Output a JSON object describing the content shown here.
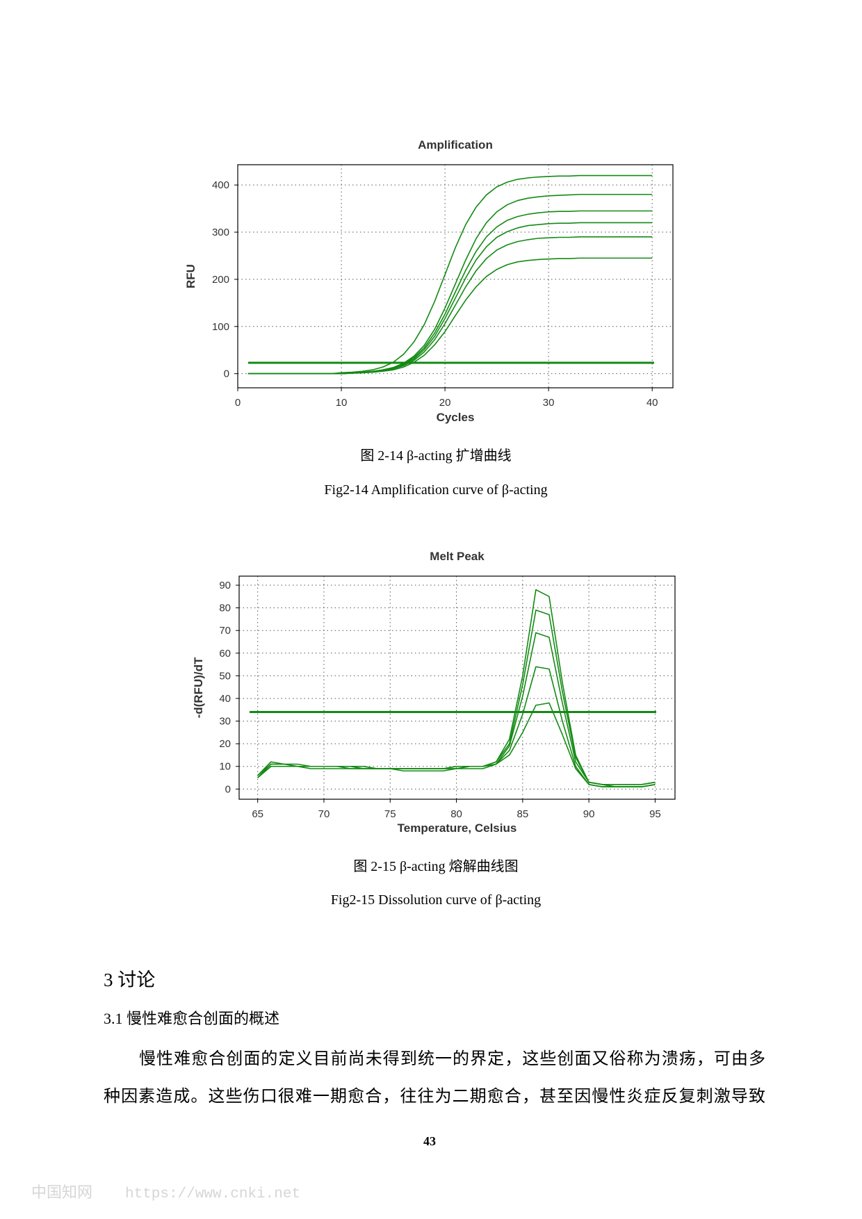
{
  "chart_data": [
    {
      "type": "line",
      "title": "Amplification",
      "x_label": "Cycles",
      "y_label": "RFU",
      "xlim": [
        0,
        42
      ],
      "ylim": [
        -30,
        443
      ],
      "xticks": [
        0,
        10,
        20,
        30,
        40
      ],
      "yticks": [
        0,
        100,
        200,
        300,
        400
      ],
      "grid": true,
      "threshold": 23,
      "threshold_color": "#138a13",
      "x": [
        1,
        2,
        3,
        4,
        5,
        6,
        7,
        8,
        9,
        10,
        11,
        12,
        13,
        14,
        15,
        16,
        17,
        18,
        19,
        20,
        21,
        22,
        23,
        24,
        25,
        26,
        27,
        28,
        29,
        30,
        31,
        32,
        33,
        34,
        35,
        36,
        37,
        38,
        39,
        40
      ],
      "series": [
        {
          "color": "#138a13",
          "values": [
            0,
            0,
            0,
            0,
            0,
            0,
            0,
            0,
            0,
            2,
            3,
            5,
            8,
            14,
            24,
            41,
            67,
            104,
            153,
            210,
            267,
            316,
            353,
            379,
            396,
            406,
            412,
            415,
            417,
            418,
            419,
            419,
            420,
            420,
            420,
            420,
            420,
            420,
            420,
            420
          ]
        },
        {
          "color": "#138a13",
          "values": [
            0,
            0,
            0,
            0,
            0,
            0,
            0,
            0,
            0,
            0,
            2,
            3,
            5,
            8,
            13,
            22,
            37,
            60,
            94,
            139,
            190,
            241,
            286,
            320,
            343,
            358,
            367,
            372,
            375,
            377,
            378,
            379,
            380,
            380,
            380,
            380,
            380,
            380,
            380,
            380
          ]
        },
        {
          "color": "#138a13",
          "values": [
            0,
            0,
            0,
            0,
            0,
            0,
            0,
            0,
            0,
            0,
            1,
            2,
            4,
            7,
            12,
            20,
            34,
            55,
            86,
            126,
            173,
            219,
            259,
            290,
            311,
            325,
            333,
            338,
            341,
            343,
            344,
            344,
            345,
            345,
            345,
            345,
            345,
            345,
            345,
            345
          ]
        },
        {
          "color": "#138a13",
          "values": [
            0,
            0,
            0,
            0,
            0,
            0,
            0,
            0,
            0,
            0,
            1,
            2,
            4,
            6,
            11,
            19,
            31,
            51,
            79,
            117,
            160,
            203,
            241,
            269,
            289,
            301,
            309,
            314,
            316,
            318,
            319,
            319,
            320,
            320,
            320,
            320,
            320,
            320,
            320,
            320
          ]
        },
        {
          "color": "#138a13",
          "values": [
            0,
            0,
            0,
            0,
            0,
            0,
            0,
            0,
            0,
            0,
            1,
            2,
            3,
            6,
            10,
            17,
            28,
            46,
            72,
            106,
            145,
            184,
            218,
            244,
            262,
            273,
            280,
            284,
            287,
            288,
            289,
            289,
            290,
            290,
            290,
            290,
            290,
            290,
            290,
            290
          ]
        },
        {
          "color": "#138a13",
          "values": [
            0,
            0,
            0,
            0,
            0,
            0,
            0,
            0,
            0,
            0,
            1,
            2,
            3,
            5,
            8,
            14,
            24,
            39,
            61,
            89,
            123,
            156,
            184,
            206,
            221,
            231,
            237,
            240,
            242,
            243,
            244,
            244,
            245,
            245,
            245,
            245,
            245,
            245,
            245,
            245
          ]
        }
      ]
    },
    {
      "type": "line",
      "title": "Melt Peak",
      "x_label": "Temperature, Celsius",
      "y_label": "-d(RFU)/dT",
      "xlim": [
        63.6,
        96.5
      ],
      "ylim": [
        -4.5,
        94
      ],
      "xticks": [
        65,
        70,
        75,
        80,
        85,
        90,
        95
      ],
      "yticks": [
        0,
        10,
        20,
        30,
        40,
        50,
        60,
        70,
        80,
        90
      ],
      "grid": true,
      "threshold": 34,
      "threshold_color": "#138a13",
      "x": [
        65,
        66,
        67,
        68,
        69,
        70,
        71,
        72,
        73,
        74,
        75,
        76,
        77,
        78,
        79,
        80,
        81,
        82,
        83,
        84,
        85,
        86,
        87,
        88,
        89,
        90,
        91,
        92,
        93,
        94,
        95
      ],
      "series": [
        {
          "color": "#138a13",
          "values": [
            5,
            11,
            11,
            10,
            10,
            10,
            10,
            10,
            10,
            9,
            9,
            9,
            9,
            9,
            9,
            10,
            10,
            10,
            12,
            22,
            50,
            88,
            85,
            47,
            15,
            3,
            2,
            2,
            2,
            2,
            3
          ]
        },
        {
          "color": "#138a13",
          "values": [
            6,
            12,
            11,
            11,
            10,
            10,
            10,
            10,
            10,
            9,
            9,
            9,
            9,
            9,
            9,
            10,
            10,
            10,
            12,
            20,
            46,
            79,
            77,
            43,
            14,
            3,
            2,
            2,
            2,
            2,
            3
          ]
        },
        {
          "color": "#138a13",
          "values": [
            5,
            10,
            10,
            10,
            10,
            10,
            10,
            9,
            9,
            9,
            9,
            9,
            9,
            9,
            9,
            9,
            10,
            10,
            11,
            19,
            41,
            69,
            67,
            38,
            12,
            3,
            2,
            1,
            1,
            1,
            2
          ]
        },
        {
          "color": "#138a13",
          "values": [
            5,
            10,
            10,
            10,
            9,
            9,
            9,
            9,
            9,
            9,
            9,
            8,
            8,
            8,
            8,
            9,
            9,
            9,
            11,
            17,
            33,
            54,
            53,
            30,
            10,
            2,
            1,
            1,
            1,
            1,
            2
          ]
        },
        {
          "color": "#138a13",
          "values": [
            6,
            11,
            11,
            10,
            10,
            10,
            10,
            10,
            9,
            9,
            9,
            9,
            9,
            9,
            9,
            9,
            10,
            10,
            11,
            15,
            25,
            37,
            38,
            24,
            9,
            2,
            1,
            1,
            1,
            1,
            2
          ]
        }
      ]
    }
  ],
  "captions": [
    {
      "zh": "图 2-14 β-acting  扩增曲线",
      "en": "Fig2-14 Amplification curve of β-acting"
    },
    {
      "zh": "图  2-15 β-acting  熔解曲线图",
      "en": "Fig2-15 Dissolution curve of β-acting"
    }
  ],
  "section": {
    "heading": "3 讨论",
    "subheading": "3.1 慢性难愈合创面的概述"
  },
  "paragraph": {
    "lines": [
      "慢性难愈合创面的定义目前尚未得到统一的界定，这些创面又俗称为溃疡，可由多",
      "种因素造成。这些伤口很难一期愈合，往往为二期愈合，甚至因慢性炎症反复刺激导致"
    ]
  },
  "page_number": "43",
  "watermark": {
    "name": "中国知网",
    "url": "https://www.cnki.net"
  }
}
